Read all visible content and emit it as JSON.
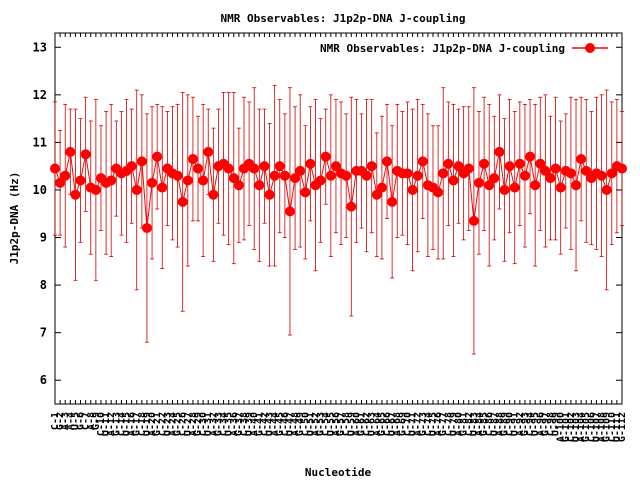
{
  "chart_data": {
    "type": "line",
    "title": "NMR Observables: J1p2p-DNA J-coupling",
    "xlabel": "Nucleotide",
    "ylabel": "J1p2p-DNA (Hz)",
    "ylim": [
      5.5,
      13.3
    ],
    "yticks": [
      6,
      7,
      8,
      9,
      10,
      11,
      12,
      13
    ],
    "legend_position": "top-right",
    "grid": false,
    "colors": {
      "series": "#ff0000",
      "errorbar": "#cc0000",
      "frame": "#000000"
    },
    "x_tick_labels": [
      "C-1",
      "G-2",
      "A-3",
      "A-4",
      "U-5",
      "G-6",
      "C-7",
      "A-8",
      "G-9",
      "C-10",
      "U-11",
      "A-12",
      "G-13",
      "C-14",
      "U-15",
      "A-16",
      "G-17",
      "C-18",
      "U-19",
      "A-20",
      "G-21",
      "C-22",
      "U-23",
      "A-24",
      "G-25",
      "C-26",
      "U-27",
      "A-28",
      "G-29",
      "C-30",
      "U-31",
      "A-32",
      "G-33",
      "C-34",
      "U-35",
      "A-36",
      "G-37",
      "C-38",
      "U-39",
      "A-40",
      "G-41",
      "C-42",
      "U-43",
      "A-44",
      "G-45",
      "C-46",
      "U-47",
      "A-48",
      "G-49",
      "C-50",
      "U-51",
      "A-52",
      "G-53",
      "C-54",
      "U-55",
      "A-56",
      "G-57",
      "C-58",
      "U-59",
      "A-60",
      "G-61",
      "C-62",
      "U-63",
      "A-64",
      "G-65",
      "C-66",
      "U-67",
      "A-68",
      "G-69",
      "C-70",
      "U-71",
      "A-72",
      "G-73",
      "C-74",
      "U-75",
      "A-76",
      "G-77",
      "C-78",
      "U-79",
      "A-80",
      "G-81",
      "C-82",
      "U-83",
      "A-84",
      "G-85",
      "C-86",
      "U-87",
      "A-88",
      "G-89",
      "C-90",
      "U-91",
      "A-92",
      "G-93",
      "C-94",
      "U-95",
      "A-96",
      "G-97",
      "C-98",
      "U-99",
      "A-100",
      "G-101",
      "C-102",
      "U-103",
      "A-104",
      "G-105",
      "C-106",
      "U-107",
      "A-108",
      "G-109",
      "C-110",
      "U-111",
      "G-112"
    ],
    "series": [
      {
        "name": "NMR Observables: J1p2p-DNA J-coupling",
        "values": [
          10.45,
          10.15,
          10.3,
          10.8,
          9.9,
          10.2,
          10.75,
          10.05,
          10.0,
          10.25,
          10.15,
          10.2,
          10.45,
          10.35,
          10.4,
          10.5,
          10.0,
          10.6,
          9.2,
          10.15,
          10.7,
          10.05,
          10.45,
          10.35,
          10.3,
          9.75,
          10.2,
          10.65,
          10.45,
          10.2,
          10.8,
          9.9,
          10.5,
          10.55,
          10.45,
          10.25,
          10.1,
          10.45,
          10.55,
          10.45,
          10.1,
          10.5,
          9.9,
          10.3,
          10.5,
          10.3,
          9.55,
          10.25,
          10.4,
          9.95,
          10.55,
          10.1,
          10.2,
          10.7,
          10.3,
          10.5,
          10.35,
          10.3,
          9.65,
          10.4,
          10.4,
          10.3,
          10.5,
          9.9,
          10.05,
          10.6,
          9.75,
          10.4,
          10.35,
          10.35,
          10.0,
          10.3,
          10.6,
          10.1,
          10.05,
          9.95,
          10.35,
          10.55,
          10.2,
          10.5,
          10.35,
          10.45,
          9.35,
          10.15,
          10.55,
          10.1,
          10.25,
          10.8,
          10.0,
          10.5,
          10.05,
          10.55,
          10.3,
          10.7,
          10.1,
          10.55,
          10.4,
          10.25,
          10.45,
          10.05,
          10.4,
          10.35,
          10.1,
          10.65,
          10.4,
          10.25,
          10.35,
          10.3,
          10.0,
          10.35,
          10.5,
          10.45
        ],
        "errors": [
          1.4,
          1.1,
          1.5,
          0.9,
          1.8,
          1.3,
          1.2,
          1.4,
          1.9,
          1.1,
          1.5,
          1.6,
          1.0,
          1.3,
          1.5,
          1.2,
          2.1,
          1.4,
          2.4,
          1.6,
          1.1,
          1.7,
          1.2,
          1.4,
          1.5,
          2.3,
          1.8,
          1.3,
          1.1,
          1.6,
          0.9,
          1.4,
          1.2,
          1.5,
          1.6,
          1.8,
          1.2,
          1.5,
          1.3,
          1.7,
          1.6,
          1.2,
          1.5,
          1.9,
          1.4,
          1.3,
          2.6,
          1.5,
          1.6,
          1.4,
          1.2,
          1.8,
          1.3,
          1.0,
          1.7,
          1.4,
          1.5,
          1.3,
          2.3,
          1.5,
          1.2,
          1.6,
          1.4,
          1.3,
          1.5,
          1.2,
          1.6,
          1.4,
          1.3,
          1.5,
          1.7,
          1.6,
          1.2,
          1.5,
          1.3,
          1.4,
          1.8,
          1.3,
          1.6,
          1.2,
          1.4,
          1.3,
          2.8,
          1.5,
          1.4,
          1.7,
          1.3,
          1.2,
          1.5,
          1.4,
          1.6,
          1.3,
          1.5,
          1.2,
          1.7,
          1.4,
          1.6,
          1.3,
          1.5,
          1.4,
          1.2,
          1.6,
          1.8,
          1.3,
          1.5,
          1.4,
          1.6,
          1.7,
          2.1,
          1.5,
          1.4,
          1.2
        ]
      }
    ]
  }
}
